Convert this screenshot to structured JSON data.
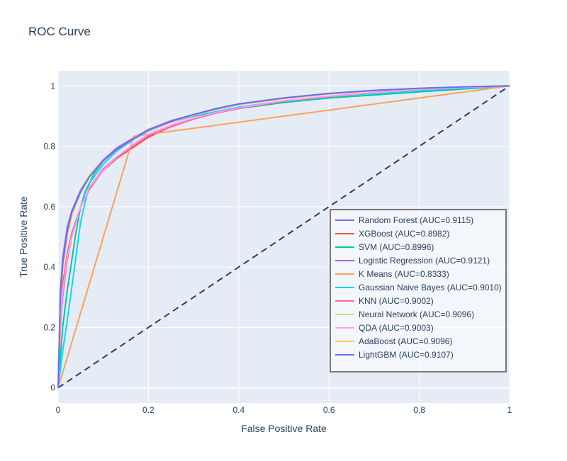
{
  "chart_data": {
    "type": "line",
    "title": "ROC Curve",
    "xlabel": "False Positive Rate",
    "ylabel": "True Positive Rate",
    "xlim": [
      0,
      1
    ],
    "ylim": [
      -0.05,
      1.05
    ],
    "x_ticks": [
      0,
      0.2,
      0.4,
      0.6,
      0.8,
      1
    ],
    "x_tick_labels": [
      "0",
      "0.2",
      "0.4",
      "0.6",
      "0.8",
      "1"
    ],
    "y_ticks": [
      0,
      0.2,
      0.4,
      0.6,
      0.8,
      1
    ],
    "y_tick_labels": [
      "0",
      "0.2",
      "0.4",
      "0.6",
      "0.8",
      "1"
    ],
    "grid": true,
    "legend_position": "right",
    "reference_line": {
      "x": [
        0,
        1
      ],
      "y": [
        0,
        1
      ],
      "style": "dashed",
      "color": "#2a3f5f"
    },
    "series": [
      {
        "name": "Random Forest (AUC=0.9115)",
        "color": "#636efa",
        "x": [
          0,
          0.005,
          0.01,
          0.02,
          0.03,
          0.05,
          0.07,
          0.1,
          0.13,
          0.17,
          0.2,
          0.25,
          0.3,
          0.35,
          0.4,
          0.5,
          0.6,
          0.7,
          0.8,
          0.9,
          1
        ],
        "y": [
          0,
          0.3,
          0.42,
          0.52,
          0.58,
          0.65,
          0.7,
          0.75,
          0.79,
          0.83,
          0.855,
          0.88,
          0.905,
          0.925,
          0.94,
          0.96,
          0.975,
          0.985,
          0.992,
          0.997,
          1
        ]
      },
      {
        "name": "XGBoost (AUC=0.8982)",
        "color": "#EF553B",
        "x": [
          0,
          0.005,
          0.01,
          0.02,
          0.03,
          0.05,
          0.07,
          0.1,
          0.13,
          0.17,
          0.2,
          0.25,
          0.3,
          0.35,
          0.4,
          0.5,
          0.6,
          0.7,
          0.8,
          0.9,
          1
        ],
        "y": [
          0,
          0.24,
          0.34,
          0.44,
          0.51,
          0.6,
          0.66,
          0.72,
          0.76,
          0.8,
          0.83,
          0.865,
          0.89,
          0.91,
          0.925,
          0.95,
          0.965,
          0.978,
          0.988,
          0.995,
          1
        ]
      },
      {
        "name": "SVM (AUC=0.8996)",
        "color": "#00cc96",
        "x": [
          0,
          0.005,
          0.01,
          0.02,
          0.03,
          0.04,
          0.05,
          0.06,
          0.08,
          0.1,
          0.13,
          0.17,
          0.2,
          0.25,
          0.3,
          0.4,
          0.5,
          0.6,
          0.7,
          0.8,
          0.9,
          1
        ],
        "y": [
          0,
          0.1,
          0.2,
          0.32,
          0.42,
          0.52,
          0.6,
          0.65,
          0.71,
          0.75,
          0.79,
          0.83,
          0.855,
          0.88,
          0.9,
          0.925,
          0.945,
          0.96,
          0.97,
          0.98,
          0.99,
          1
        ]
      },
      {
        "name": "Logistic Regression (AUC=0.9121)",
        "color": "#ab63fa",
        "x": [
          0,
          0.005,
          0.01,
          0.02,
          0.03,
          0.05,
          0.07,
          0.1,
          0.13,
          0.17,
          0.2,
          0.25,
          0.3,
          0.35,
          0.4,
          0.5,
          0.6,
          0.7,
          0.8,
          0.9,
          1
        ],
        "y": [
          0,
          0.32,
          0.43,
          0.53,
          0.585,
          0.655,
          0.705,
          0.755,
          0.795,
          0.83,
          0.855,
          0.885,
          0.905,
          0.925,
          0.94,
          0.96,
          0.975,
          0.985,
          0.992,
          0.997,
          1
        ]
      },
      {
        "name": "K Means (AUC=0.8333)",
        "color": "#FFA15A",
        "x": [
          0,
          0.167,
          1
        ],
        "y": [
          0,
          0.833,
          1
        ]
      },
      {
        "name": "Gaussian Naive Bayes (AUC=0.9010)",
        "color": "#19d3f3",
        "x": [
          0,
          0.005,
          0.01,
          0.02,
          0.03,
          0.04,
          0.05,
          0.07,
          0.1,
          0.13,
          0.17,
          0.2,
          0.25,
          0.3,
          0.4,
          0.5,
          0.6,
          0.7,
          0.8,
          0.9,
          1
        ],
        "y": [
          0,
          0.06,
          0.12,
          0.22,
          0.33,
          0.44,
          0.55,
          0.68,
          0.74,
          0.785,
          0.825,
          0.85,
          0.88,
          0.9,
          0.93,
          0.95,
          0.965,
          0.975,
          0.985,
          0.993,
          1
        ]
      },
      {
        "name": "KNN (AUC=0.9002)",
        "color": "#FF6692",
        "x": [
          0,
          0.005,
          0.01,
          0.02,
          0.03,
          0.05,
          0.07,
          0.1,
          0.13,
          0.17,
          0.2,
          0.25,
          0.3,
          0.35,
          0.4,
          0.5,
          0.6,
          0.7,
          0.8,
          0.9,
          1
        ],
        "y": [
          0,
          0.2,
          0.3,
          0.42,
          0.5,
          0.6,
          0.665,
          0.725,
          0.765,
          0.805,
          0.835,
          0.865,
          0.89,
          0.91,
          0.925,
          0.95,
          0.965,
          0.978,
          0.988,
          0.995,
          1
        ]
      },
      {
        "name": "Neural Network (AUC=0.9096)",
        "color": "#B6E880",
        "x": [
          0,
          0.005,
          0.01,
          0.02,
          0.03,
          0.05,
          0.07,
          0.1,
          0.13,
          0.17,
          0.2,
          0.25,
          0.3,
          0.35,
          0.4,
          0.5,
          0.6,
          0.7,
          0.8,
          0.9,
          1
        ],
        "y": [
          0,
          0.29,
          0.4,
          0.5,
          0.57,
          0.645,
          0.7,
          0.75,
          0.79,
          0.827,
          0.852,
          0.88,
          0.903,
          0.922,
          0.938,
          0.958,
          0.973,
          0.984,
          0.991,
          0.997,
          1
        ]
      },
      {
        "name": "QDA (AUC=0.9003)",
        "color": "#FF97FF",
        "x": [
          0,
          0.005,
          0.01,
          0.02,
          0.03,
          0.05,
          0.07,
          0.1,
          0.13,
          0.17,
          0.2,
          0.25,
          0.3,
          0.35,
          0.4,
          0.5,
          0.6,
          0.7,
          0.8,
          0.9,
          1
        ],
        "y": [
          0,
          0.22,
          0.32,
          0.43,
          0.5,
          0.6,
          0.665,
          0.72,
          0.765,
          0.81,
          0.84,
          0.87,
          0.893,
          0.912,
          0.927,
          0.951,
          0.966,
          0.978,
          0.988,
          0.995,
          1
        ]
      },
      {
        "name": "AdaBoost (AUC=0.9096)",
        "color": "#FECB52",
        "x": [
          0,
          0.005,
          0.01,
          0.02,
          0.03,
          0.05,
          0.07,
          0.1,
          0.13,
          0.17,
          0.2,
          0.25,
          0.3,
          0.35,
          0.4,
          0.5,
          0.6,
          0.7,
          0.8,
          0.9,
          1
        ],
        "y": [
          0,
          0.28,
          0.39,
          0.5,
          0.57,
          0.65,
          0.705,
          0.752,
          0.79,
          0.827,
          0.852,
          0.88,
          0.903,
          0.922,
          0.938,
          0.958,
          0.973,
          0.984,
          0.991,
          0.997,
          1
        ]
      },
      {
        "name": "LightGBM (AUC=0.9107)",
        "color": "#636efa",
        "x": [
          0,
          0.005,
          0.01,
          0.02,
          0.03,
          0.05,
          0.07,
          0.1,
          0.13,
          0.17,
          0.2,
          0.25,
          0.3,
          0.35,
          0.4,
          0.5,
          0.6,
          0.7,
          0.8,
          0.9,
          1
        ],
        "y": [
          0,
          0.3,
          0.41,
          0.515,
          0.58,
          0.65,
          0.7,
          0.752,
          0.79,
          0.828,
          0.854,
          0.882,
          0.905,
          0.924,
          0.94,
          0.96,
          0.975,
          0.985,
          0.992,
          0.997,
          1
        ]
      }
    ]
  }
}
